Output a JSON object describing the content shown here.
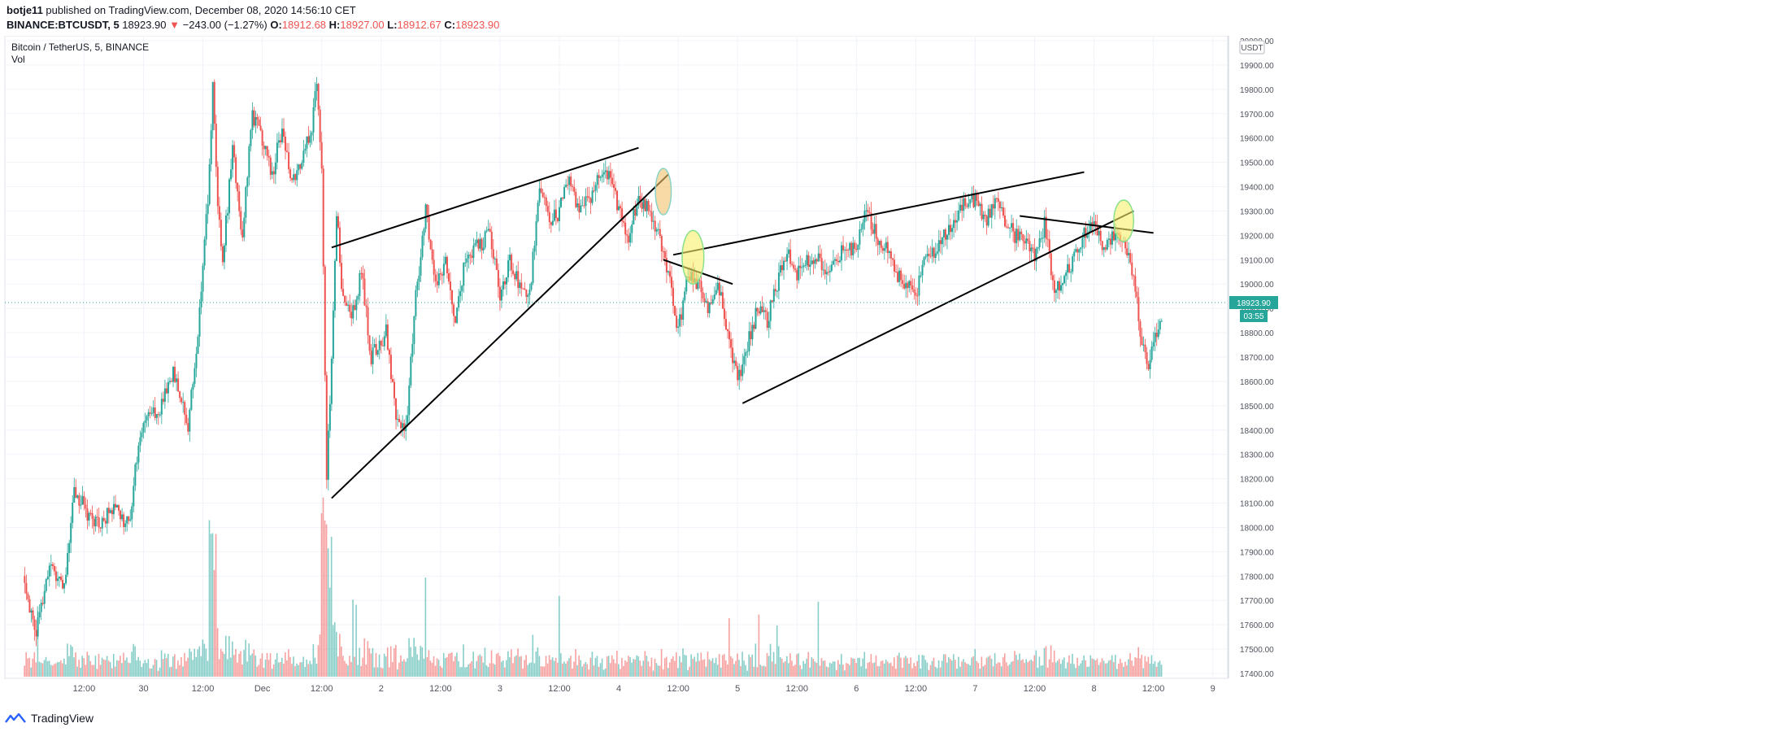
{
  "header": {
    "author": "botje11",
    "published_text": "published on TradingView.com, December 08, 2020 14:56:10 CET",
    "symbol": "BINANCE:BTCUSDT, 5",
    "last": "18923.90",
    "arrow": "▼",
    "change": "−243.00 (−1.27%)",
    "o_label": "O:",
    "o_value": "18912.68",
    "h_label": "H:",
    "h_value": "18927.00",
    "l_label": "L:",
    "l_value": "18912.67",
    "c_label": "C:",
    "c_value": "18923.90"
  },
  "legend": {
    "title": "Bitcoin / TetherUS, 5, BINANCE",
    "volume": "Vol"
  },
  "footer": {
    "brand": "TradingView",
    "logo_icon": "tradingview-logo-icon"
  },
  "colors": {
    "up": "#26a69a",
    "down": "#ef5350",
    "last_price_bg": "#26a69a",
    "grid": "#f0f3fa"
  },
  "chart_data": {
    "type": "candlestick",
    "quote_currency": "USDT",
    "ylim": [
      17400,
      20000
    ],
    "y_ticks": [
      17400,
      17500,
      17600,
      17700,
      17800,
      17900,
      18000,
      18100,
      18200,
      18300,
      18400,
      18500,
      18600,
      18700,
      18800,
      18900,
      19000,
      19100,
      19200,
      19300,
      19400,
      19500,
      19600,
      19700,
      19800,
      19900,
      20000
    ],
    "y_tick_labels": [
      "17400.00",
      "17500.00",
      "17600.00",
      "17700.00",
      "17800.00",
      "17900.00",
      "18000.00",
      "18100.00",
      "18200.00",
      "18300.00",
      "18400.00",
      "18500.00",
      "18600.00",
      "18700.00",
      "18800.00",
      "18900.00",
      "19000.00",
      "19100.00",
      "19200.00",
      "19300.00",
      "19400.00",
      "19500.00",
      "19600.00",
      "19700.00",
      "19800.00",
      "19900.00",
      "20000.00"
    ],
    "x_range_hours": [
      0,
      209
    ],
    "x_ticks": [
      {
        "t": 12,
        "label": "12:00"
      },
      {
        "t": 24,
        "label": "30"
      },
      {
        "t": 36,
        "label": "12:00"
      },
      {
        "t": 48,
        "label": "Dec"
      },
      {
        "t": 60,
        "label": "12:00"
      },
      {
        "t": 72,
        "label": "2"
      },
      {
        "t": 84,
        "label": "12:00"
      },
      {
        "t": 96,
        "label": "3"
      },
      {
        "t": 108,
        "label": "12:00"
      },
      {
        "t": 120,
        "label": "4"
      },
      {
        "t": 132,
        "label": "12:00"
      },
      {
        "t": 144,
        "label": "5"
      },
      {
        "t": 156,
        "label": "12:00"
      },
      {
        "t": 168,
        "label": "6"
      },
      {
        "t": 180,
        "label": "12:00"
      },
      {
        "t": 192,
        "label": "7"
      },
      {
        "t": 204,
        "label": "12:00"
      },
      {
        "t": 216,
        "label": "8"
      },
      {
        "t": 228,
        "label": "12:00"
      },
      {
        "t": 240,
        "label": "9"
      }
    ],
    "price_path": [
      [
        0,
        17800
      ],
      [
        2,
        17550
      ],
      [
        5,
        17850
      ],
      [
        8,
        17750
      ],
      [
        10,
        18150
      ],
      [
        13,
        18050
      ],
      [
        15,
        18000
      ],
      [
        18,
        18100
      ],
      [
        21,
        18000
      ],
      [
        23,
        18350
      ],
      [
        25,
        18500
      ],
      [
        27,
        18450
      ],
      [
        30,
        18650
      ],
      [
        33,
        18400
      ],
      [
        35,
        18800
      ],
      [
        37,
        19350
      ],
      [
        38,
        19800
      ],
      [
        39,
        19300
      ],
      [
        40,
        19100
      ],
      [
        42,
        19550
      ],
      [
        44,
        19200
      ],
      [
        46,
        19700
      ],
      [
        48,
        19600
      ],
      [
        50,
        19450
      ],
      [
        52,
        19650
      ],
      [
        54,
        19400
      ],
      [
        56,
        19500
      ],
      [
        58,
        19650
      ],
      [
        59,
        19850
      ],
      [
        60,
        19500
      ],
      [
        61,
        18200
      ],
      [
        62,
        18700
      ],
      [
        63,
        19300
      ],
      [
        64,
        19000
      ],
      [
        66,
        18850
      ],
      [
        68,
        19050
      ],
      [
        70,
        18700
      ],
      [
        73,
        18800
      ],
      [
        75,
        18450
      ],
      [
        77,
        18400
      ],
      [
        79,
        18950
      ],
      [
        81,
        19300
      ],
      [
        83,
        19000
      ],
      [
        85,
        19100
      ],
      [
        87,
        18850
      ],
      [
        89,
        19100
      ],
      [
        91,
        19150
      ],
      [
        94,
        19200
      ],
      [
        96,
        18950
      ],
      [
        98,
        19100
      ],
      [
        100,
        19000
      ],
      [
        102,
        18950
      ],
      [
        104,
        19400
      ],
      [
        106,
        19250
      ],
      [
        108,
        19300
      ],
      [
        110,
        19450
      ],
      [
        112,
        19300
      ],
      [
        114,
        19350
      ],
      [
        116,
        19450
      ],
      [
        118,
        19450
      ],
      [
        120,
        19300
      ],
      [
        122,
        19200
      ],
      [
        124,
        19350
      ],
      [
        126,
        19300
      ],
      [
        128,
        19200
      ],
      [
        130,
        19050
      ],
      [
        132,
        18800
      ],
      [
        134,
        19050
      ],
      [
        136,
        19000
      ],
      [
        138,
        18900
      ],
      [
        140,
        19000
      ],
      [
        142,
        18800
      ],
      [
        144,
        18600
      ],
      [
        146,
        18750
      ],
      [
        148,
        18900
      ],
      [
        150,
        18850
      ],
      [
        152,
        19000
      ],
      [
        154,
        19150
      ],
      [
        156,
        19050
      ],
      [
        158,
        19100
      ],
      [
        160,
        19100
      ],
      [
        162,
        19050
      ],
      [
        164,
        19100
      ],
      [
        166,
        19150
      ],
      [
        168,
        19150
      ],
      [
        170,
        19300
      ],
      [
        172,
        19200
      ],
      [
        174,
        19150
      ],
      [
        176,
        19050
      ],
      [
        178,
        19000
      ],
      [
        180,
        18950
      ],
      [
        182,
        19100
      ],
      [
        184,
        19150
      ],
      [
        186,
        19200
      ],
      [
        188,
        19250
      ],
      [
        190,
        19350
      ],
      [
        192,
        19350
      ],
      [
        194,
        19250
      ],
      [
        196,
        19350
      ],
      [
        198,
        19250
      ],
      [
        200,
        19200
      ],
      [
        202,
        19200
      ],
      [
        204,
        19100
      ],
      [
        206,
        19250
      ],
      [
        208,
        18950
      ],
      [
        210,
        19050
      ],
      [
        212,
        19100
      ],
      [
        214,
        19200
      ],
      [
        216,
        19250
      ],
      [
        218,
        19150
      ],
      [
        220,
        19200
      ],
      [
        222,
        19150
      ],
      [
        224,
        19050
      ],
      [
        225,
        18850
      ],
      [
        226,
        18750
      ],
      [
        227,
        18650
      ],
      [
        228,
        18750
      ],
      [
        229,
        18800
      ],
      [
        230,
        18923.9
      ]
    ],
    "last_price": 18923.9,
    "last_price_label": "18923.90",
    "countdown_label": "03:55",
    "annotations": {
      "trendlines": [
        {
          "t1": 62,
          "p1": 19150,
          "t2": 124,
          "p2": 19560
        },
        {
          "t1": 62,
          "p1": 18120,
          "t2": 130,
          "p2": 19450
        },
        {
          "t1": 131,
          "p1": 19120,
          "t2": 214,
          "p2": 19460
        },
        {
          "t1": 129,
          "p1": 19100,
          "t2": 143,
          "p2": 19000
        },
        {
          "t1": 145,
          "p1": 18510,
          "t2": 224,
          "p2": 19300
        },
        {
          "t1": 201,
          "p1": 19280,
          "t2": 228,
          "p2": 19210
        }
      ],
      "ellipses": [
        {
          "t": 129,
          "p": 19380,
          "rt": 1.6,
          "rp": 95,
          "fill": "#f4c26b",
          "stroke": "#8bd3c7"
        },
        {
          "t": 135,
          "p": 19110,
          "rt": 2.2,
          "rp": 110,
          "fill": "#f7f06b",
          "stroke": "#8be08b"
        },
        {
          "t": 222,
          "p": 19260,
          "rt": 2.0,
          "rp": 85,
          "fill": "#f7f06b",
          "stroke": "#8be08b"
        }
      ]
    }
  }
}
